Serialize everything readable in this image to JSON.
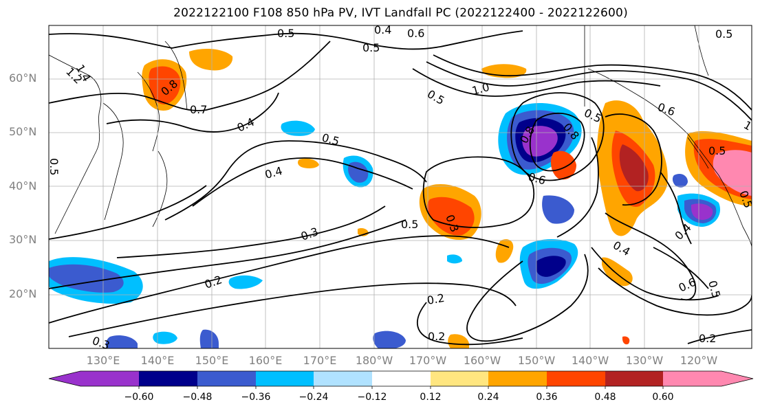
{
  "title": "2022122100 F108 850 hPa PV, IVT Landfall PC (2022122400 - 2022122600)",
  "lat_labels": [
    "60°N",
    "50°N",
    "40°N",
    "30°N",
    "20°N"
  ],
  "lon_labels": [
    "130°E",
    "140°E",
    "150°E",
    "160°E",
    "170°E",
    "180°W",
    "170°W",
    "160°W",
    "150°W",
    "140°W",
    "130°W",
    "120°W"
  ],
  "colorbar": {
    "ticks": [
      "−0.60",
      "−0.48",
      "−0.36",
      "−0.24",
      "−0.12",
      "0.12",
      "0.24",
      "0.36",
      "0.48",
      "0.60"
    ],
    "colors": [
      "#9932cc",
      "#00008b",
      "#3b5bcf",
      "#00bfff",
      "#b0e2ff",
      "#ffffff",
      "#ffe680",
      "#ffa500",
      "#ff4500",
      "#b22222",
      "#ff88b0"
    ]
  },
  "contour_labels": [
    "0.5",
    "0.4",
    "0.5",
    "0.6",
    "0.5",
    "1.4",
    "1.2",
    "0.7",
    "0.8",
    "0.4",
    "0.5",
    "0.5",
    "0.4",
    "1.0",
    "0.5",
    "0.3",
    "0.2",
    "0.3",
    "0.5",
    "0.2",
    "0.2",
    "0.3",
    "0.5",
    "0.8",
    "0.8",
    "0.6",
    "0.5",
    "0.6",
    "1",
    "0.4",
    "0.4",
    "0.6",
    "0.5",
    "0.2",
    "0.5"
  ]
}
